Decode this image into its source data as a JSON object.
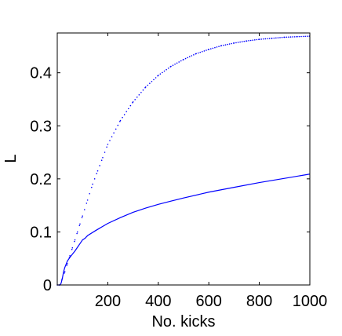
{
  "chart_data": {
    "type": "line",
    "title": "",
    "xlabel": "No. kicks",
    "ylabel": "L",
    "xlim": [
      0,
      1000
    ],
    "ylim": [
      0,
      0.475
    ],
    "x_ticks": [
      200,
      400,
      600,
      800,
      1000
    ],
    "x_tick_labels": [
      "200",
      "400",
      "600",
      "800",
      "1000"
    ],
    "y_ticks": [
      0,
      0.1,
      0.2,
      0.3,
      0.4
    ],
    "y_tick_labels": [
      "0",
      "0.1",
      "0.2",
      "0.3",
      "0.4"
    ],
    "grid": false,
    "legend": "none",
    "series": [
      {
        "style": "solid",
        "color": "#0000ff",
        "x": [
          0,
          10,
          15,
          20,
          25,
          30,
          40,
          50,
          60,
          70,
          80,
          90,
          100,
          110,
          120,
          150,
          200,
          250,
          300,
          350,
          400,
          450,
          500,
          600,
          700,
          800,
          900,
          1000
        ],
        "y": [
          0,
          0,
          0.003,
          0.012,
          0.025,
          0.033,
          0.045,
          0.052,
          0.058,
          0.064,
          0.071,
          0.078,
          0.085,
          0.088,
          0.093,
          0.102,
          0.116,
          0.127,
          0.137,
          0.145,
          0.152,
          0.158,
          0.164,
          0.175,
          0.184,
          0.193,
          0.201,
          0.209
        ]
      },
      {
        "style": "dotted",
        "color": "#0000ff",
        "x": [
          0,
          10,
          20,
          30,
          40,
          50,
          60,
          70,
          80,
          90,
          100,
          120,
          140,
          160,
          180,
          200,
          250,
          300,
          350,
          400,
          450,
          500,
          550,
          600,
          650,
          700,
          750,
          800,
          850,
          900,
          950,
          1000
        ],
        "y": [
          0,
          0,
          0.012,
          0.025,
          0.04,
          0.055,
          0.07,
          0.085,
          0.1,
          0.115,
          0.13,
          0.16,
          0.19,
          0.215,
          0.24,
          0.265,
          0.31,
          0.345,
          0.373,
          0.395,
          0.412,
          0.425,
          0.436,
          0.444,
          0.451,
          0.456,
          0.46,
          0.463,
          0.465,
          0.467,
          0.468,
          0.469
        ]
      }
    ]
  }
}
